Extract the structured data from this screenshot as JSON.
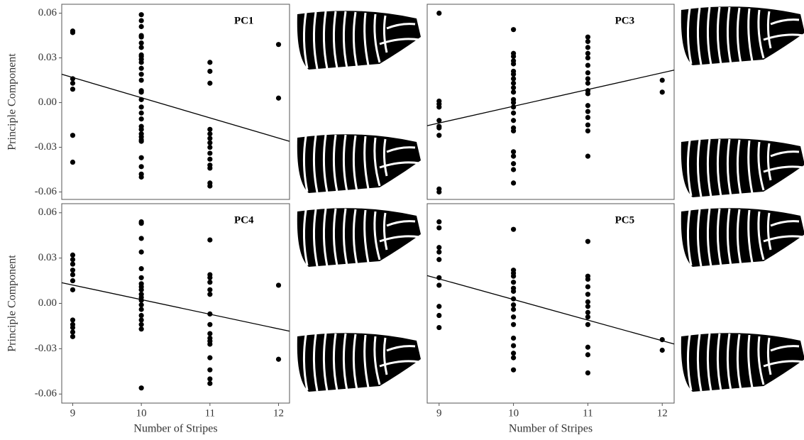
{
  "chart_data": [
    {
      "type": "scatter",
      "title": "PC1",
      "ylabel": "Principle Component",
      "x": [
        9,
        9,
        9,
        9,
        9,
        9,
        9,
        10,
        10,
        10,
        10,
        10,
        10,
        10,
        10,
        10,
        10,
        10,
        10,
        10,
        10,
        10,
        10,
        10,
        10,
        10,
        10,
        10,
        10,
        10,
        10,
        10,
        10,
        10,
        10,
        10,
        10,
        11,
        11,
        11,
        11,
        11,
        11,
        11,
        11,
        11,
        11,
        11,
        11,
        11,
        11,
        12,
        12
      ],
      "y": [
        0.048,
        0.047,
        0.016,
        0.013,
        0.009,
        -0.022,
        -0.04,
        0.059,
        0.055,
        0.051,
        0.045,
        0.044,
        0.04,
        0.037,
        0.032,
        0.031,
        0.029,
        0.027,
        0.023,
        0.019,
        0.015,
        0.008,
        0.007,
        0.002,
        -0.003,
        -0.007,
        -0.011,
        -0.016,
        -0.018,
        -0.021,
        -0.023,
        -0.025,
        -0.026,
        -0.037,
        -0.043,
        -0.048,
        -0.05,
        0.027,
        0.021,
        0.013,
        -0.018,
        -0.021,
        -0.024,
        -0.027,
        -0.03,
        -0.034,
        -0.038,
        -0.042,
        -0.044,
        -0.054,
        -0.056,
        0.039,
        0.003
      ],
      "trend": {
        "x": [
          8.84,
          12.16
        ],
        "y": [
          0.019,
          -0.026
        ]
      },
      "color": "#000000",
      "xlim": [
        8.84,
        12.16
      ],
      "ylim": [
        -0.065,
        0.066
      ],
      "yticks": [
        0.06,
        0.03,
        {
          "value": 0,
          "label": "0.00"
        },
        -0.03,
        -0.06
      ]
    },
    {
      "type": "scatter",
      "title": "PC3",
      "x": [
        9,
        9,
        9,
        9,
        9,
        9,
        9,
        9,
        9,
        9,
        10,
        10,
        10,
        10,
        10,
        10,
        10,
        10,
        10,
        10,
        10,
        10,
        10,
        10,
        10,
        10,
        10,
        10,
        10,
        10,
        10,
        10,
        10,
        11,
        11,
        11,
        11,
        11,
        11,
        11,
        11,
        11,
        11,
        11,
        11,
        11,
        11,
        11,
        11,
        11,
        12,
        12
      ],
      "y": [
        0.06,
        0.001,
        -0.001,
        -0.003,
        -0.012,
        -0.016,
        -0.017,
        -0.022,
        -0.058,
        -0.06,
        0.049,
        0.033,
        0.031,
        0.028,
        0.026,
        0.021,
        0.019,
        0.016,
        0.013,
        0.01,
        0.007,
        0.002,
        0.0,
        -0.003,
        -0.007,
        -0.012,
        -0.017,
        -0.019,
        -0.033,
        -0.036,
        -0.041,
        -0.045,
        -0.054,
        0.044,
        0.041,
        0.037,
        0.033,
        0.03,
        0.025,
        0.02,
        0.016,
        0.013,
        0.008,
        0.006,
        -0.002,
        -0.006,
        -0.01,
        -0.015,
        -0.019,
        -0.036,
        0.015,
        0.007
      ],
      "trend": {
        "x": [
          8.84,
          12.16
        ],
        "y": [
          -0.0155,
          0.0218
        ]
      },
      "color": "#000000",
      "xlim": [
        8.84,
        12.16
      ],
      "ylim": [
        -0.065,
        0.066
      ]
    },
    {
      "type": "scatter",
      "title": "PC4",
      "ylabel": "Principle Component",
      "xlabel": "Number of Stripes",
      "x": [
        9,
        9,
        9,
        9,
        9,
        9,
        9,
        9,
        9,
        9,
        9,
        9,
        10,
        10,
        10,
        10,
        10,
        10,
        10,
        10,
        10,
        10,
        10,
        10,
        10,
        10,
        10,
        10,
        10,
        10,
        10,
        11,
        11,
        11,
        11,
        11,
        11,
        11,
        11,
        11,
        11,
        11,
        11,
        11,
        11,
        11,
        11,
        12,
        12
      ],
      "y": [
        0.032,
        0.029,
        0.026,
        0.022,
        0.019,
        0.015,
        0.009,
        -0.011,
        -0.014,
        -0.016,
        -0.019,
        -0.022,
        0.054,
        0.053,
        0.043,
        0.034,
        0.023,
        0.017,
        0.013,
        0.011,
        0.009,
        0.006,
        0.004,
        0.002,
        -0.001,
        -0.004,
        -0.008,
        -0.011,
        -0.014,
        -0.017,
        -0.056,
        0.042,
        0.019,
        0.017,
        0.014,
        0.009,
        0.006,
        -0.007,
        -0.014,
        -0.02,
        -0.023,
        -0.025,
        -0.027,
        -0.036,
        -0.044,
        -0.05,
        -0.053,
        0.012,
        -0.037
      ],
      "trend": {
        "x": [
          8.84,
          12.16
        ],
        "y": [
          0.0137,
          -0.0184
        ]
      },
      "color": "#000000",
      "xlim": [
        8.84,
        12.16
      ],
      "ylim": [
        -0.066,
        0.066
      ],
      "yticks": [
        0.06,
        0.03,
        {
          "value": 0,
          "label": "0.00"
        },
        -0.03,
        -0.06
      ],
      "xticks": [
        9,
        10,
        11,
        12
      ]
    },
    {
      "type": "scatter",
      "title": "PC5",
      "xlabel": "Number of Stripes",
      "x": [
        9,
        9,
        9,
        9,
        9,
        9,
        9,
        9,
        9,
        9,
        10,
        10,
        10,
        10,
        10,
        10,
        10,
        10,
        10,
        10,
        10,
        10,
        10,
        10,
        10,
        10,
        10,
        11,
        11,
        11,
        11,
        11,
        11,
        11,
        11,
        11,
        11,
        11,
        11,
        11,
        12,
        12
      ],
      "y": [
        0.054,
        0.05,
        0.037,
        0.034,
        0.029,
        0.017,
        0.012,
        -0.002,
        -0.008,
        -0.016,
        0.049,
        0.022,
        0.02,
        0.018,
        0.014,
        0.01,
        0.008,
        0.003,
        -0.001,
        -0.004,
        -0.009,
        -0.014,
        -0.023,
        -0.028,
        -0.033,
        -0.036,
        -0.044,
        0.041,
        0.018,
        0.016,
        0.011,
        0.006,
        0.001,
        -0.002,
        -0.006,
        -0.009,
        -0.014,
        -0.029,
        -0.034,
        -0.046,
        -0.024,
        -0.031
      ],
      "trend": {
        "x": [
          8.84,
          12.16
        ],
        "y": [
          0.0184,
          -0.0269
        ]
      },
      "color": "#000000",
      "xlim": [
        8.84,
        12.16
      ],
      "ylim": [
        -0.066,
        0.066
      ],
      "xticks": [
        9,
        10,
        11,
        12
      ]
    }
  ]
}
